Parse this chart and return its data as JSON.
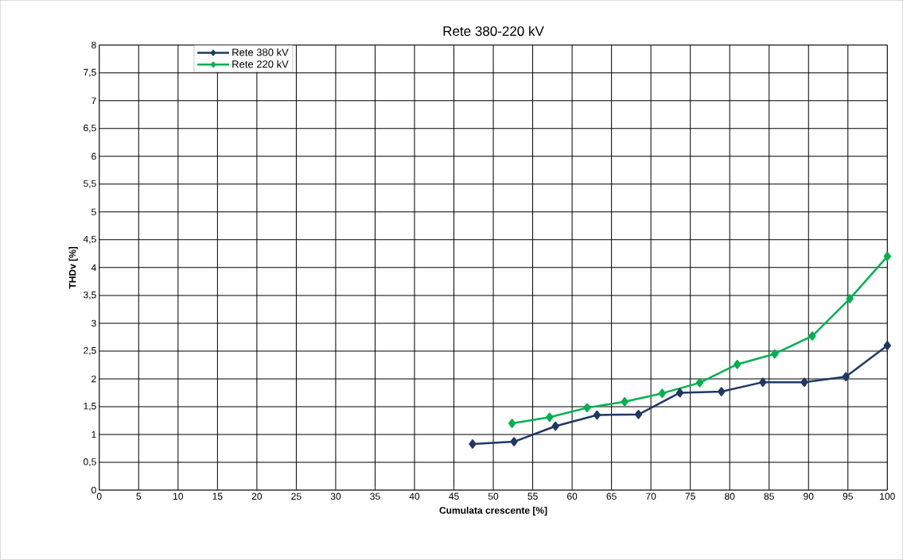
{
  "chart_data": {
    "type": "line",
    "title": "Rete 380-220 kV",
    "xlabel": "Cumulata crescente [%]",
    "ylabel": "THDv [%]",
    "xlim": [
      0,
      100
    ],
    "xticks": [
      0,
      5,
      10,
      15,
      20,
      25,
      30,
      35,
      40,
      45,
      50,
      55,
      60,
      65,
      70,
      75,
      80,
      85,
      90,
      95,
      100
    ],
    "ylim": [
      0,
      8
    ],
    "yticks": [
      0,
      {
        "value": 0.5,
        "label": "0,5"
      },
      1,
      {
        "value": 1.5,
        "label": "1,5"
      },
      2,
      {
        "value": 2.5,
        "label": "2,5"
      },
      3,
      {
        "value": 3.5,
        "label": "3,5"
      },
      4,
      {
        "value": 4.5,
        "label": "4,5"
      },
      5,
      {
        "value": 5.5,
        "label": "5,5"
      },
      6,
      {
        "value": 6.5,
        "label": "6,5"
      },
      7,
      {
        "value": 7.5,
        "label": "7,5"
      },
      8
    ],
    "grid": true,
    "legend": "top left",
    "marker": "diamond",
    "line_style": "solid",
    "series": [
      {
        "name": "Rete 380 kV",
        "color": "#1f3864",
        "x": [
          47.37,
          52.63,
          57.89,
          63.16,
          68.42,
          73.68,
          78.95,
          84.21,
          89.47,
          94.74,
          100
        ],
        "values": [
          0.83,
          0.87,
          1.15,
          1.35,
          1.36,
          1.75,
          1.77,
          1.94,
          1.94,
          2.04,
          2.6
        ]
      },
      {
        "name": "Rete 220 kV",
        "color": "#00b050",
        "x": [
          52.38,
          57.14,
          61.9,
          66.67,
          71.43,
          76.19,
          80.95,
          85.71,
          90.48,
          95.24,
          100
        ],
        "values": [
          1.2,
          1.31,
          1.48,
          1.59,
          1.74,
          1.93,
          2.26,
          2.45,
          2.77,
          3.44,
          4.2
        ]
      }
    ]
  }
}
